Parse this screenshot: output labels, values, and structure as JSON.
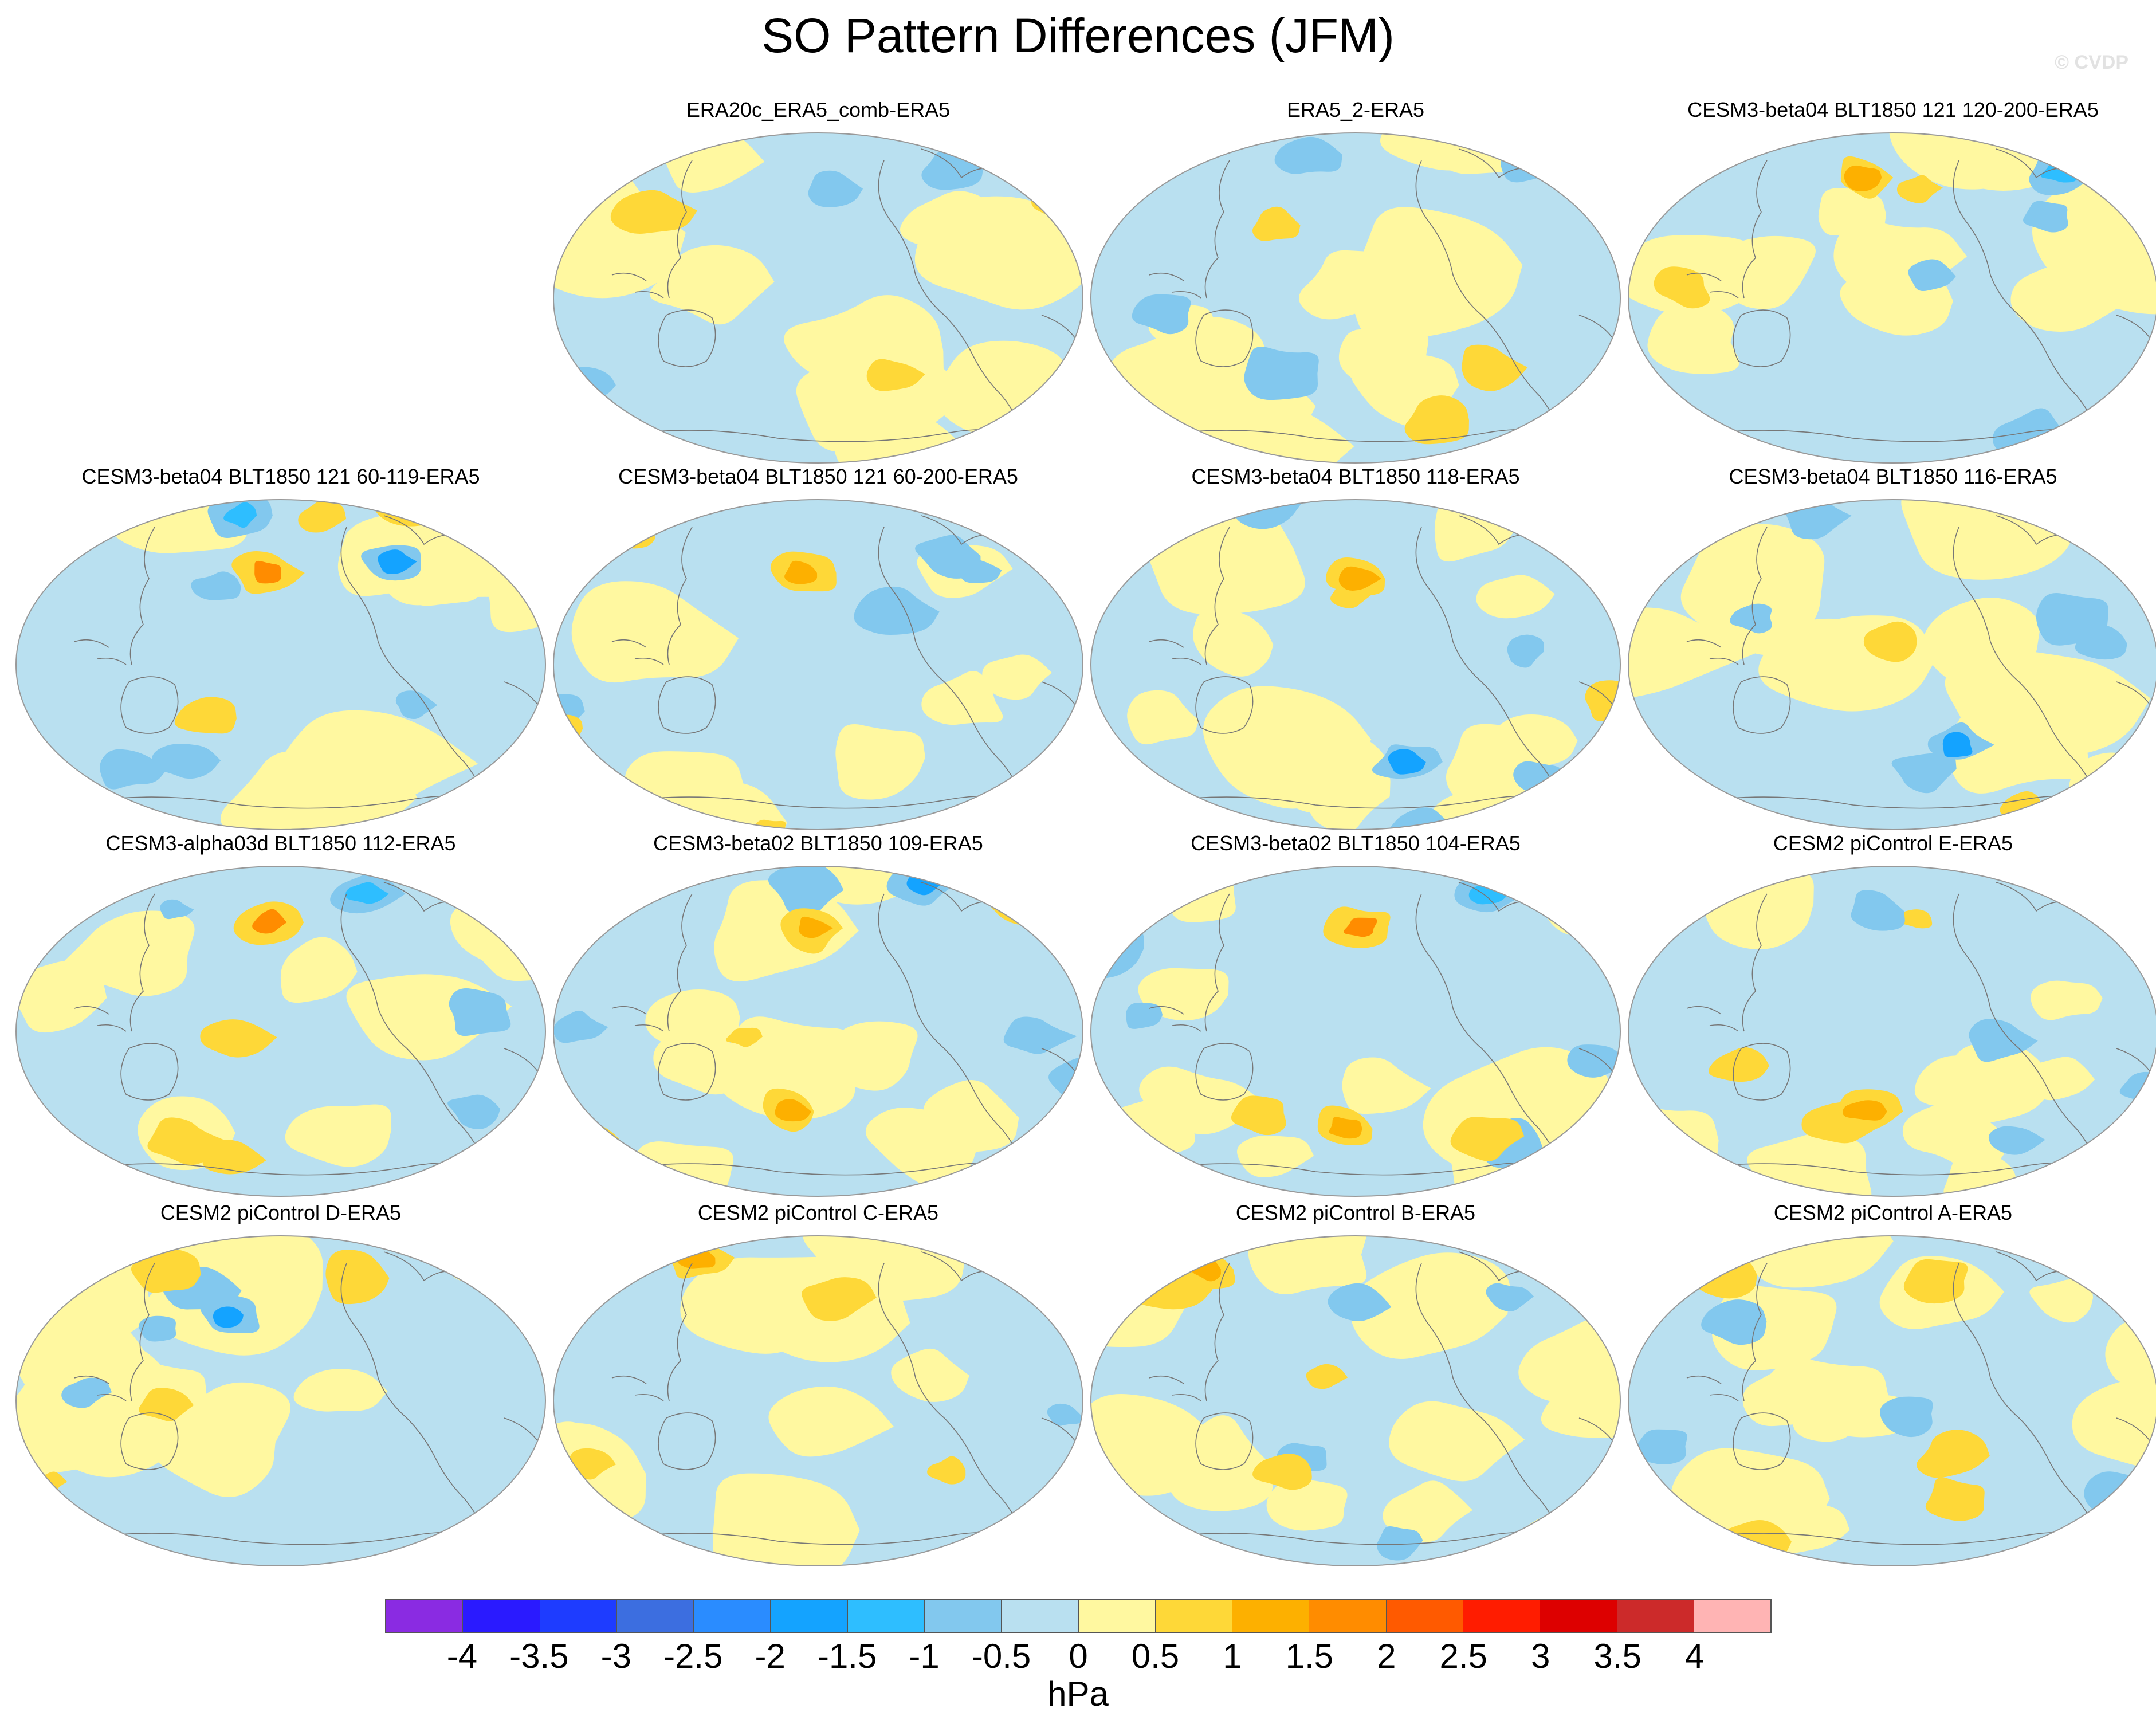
{
  "title": "SO Pattern Differences (JFM)",
  "copyright": "© CVDP",
  "colorbar": {
    "colors": [
      "#8a2be2",
      "#2a1aff",
      "#1e3cff",
      "#3c6ee0",
      "#2a8cff",
      "#14a3ff",
      "#2ebeff",
      "#82c8ee",
      "#b9e0f0",
      "#fff8a0",
      "#fed838",
      "#fdb000",
      "#ff8c00",
      "#ff5a00",
      "#ff1c00",
      "#dd0000",
      "#cc2a2a",
      "#ffb4b4"
    ],
    "ticks": [
      "-4",
      "-3.5",
      "-3",
      "-2.5",
      "-2",
      "-1.5",
      "-1",
      "-0.5",
      "0",
      "0.5",
      "1",
      "1.5",
      "2",
      "2.5",
      "3",
      "3.5",
      "4"
    ],
    "units": "hPa"
  },
  "panels": [
    {
      "title": "ERA20c_ERA5_comb-ERA5",
      "row": 0,
      "col": 1,
      "variant": 0
    },
    {
      "title": "ERA5_2-ERA5",
      "row": 0,
      "col": 2,
      "variant": 1
    },
    {
      "title": "CESM3-beta04 BLT1850 121 120-200-ERA5",
      "row": 0,
      "col": 3,
      "variant": 2
    },
    {
      "title": "CESM3-beta04 BLT1850 121 60-119-ERA5",
      "row": 1,
      "col": 0,
      "variant": 3
    },
    {
      "title": "CESM3-beta04 BLT1850 121 60-200-ERA5",
      "row": 1,
      "col": 1,
      "variant": 4
    },
    {
      "title": "CESM3-beta04 BLT1850 118-ERA5",
      "row": 1,
      "col": 2,
      "variant": 5
    },
    {
      "title": "CESM3-beta04 BLT1850 116-ERA5",
      "row": 1,
      "col": 3,
      "variant": 6
    },
    {
      "title": "CESM3-alpha03d BLT1850 112-ERA5",
      "row": 2,
      "col": 0,
      "variant": 7
    },
    {
      "title": "CESM3-beta02 BLT1850 109-ERA5",
      "row": 2,
      "col": 1,
      "variant": 8
    },
    {
      "title": "CESM3-beta02 BLT1850 104-ERA5",
      "row": 2,
      "col": 2,
      "variant": 9
    },
    {
      "title": "CESM2 piControl E-ERA5",
      "row": 2,
      "col": 3,
      "variant": 10
    },
    {
      "title": "CESM2 piControl D-ERA5",
      "row": 3,
      "col": 0,
      "variant": 11
    },
    {
      "title": "CESM2 piControl C-ERA5",
      "row": 3,
      "col": 1,
      "variant": 12
    },
    {
      "title": "CESM2 piControl B-ERA5",
      "row": 3,
      "col": 2,
      "variant": 13
    },
    {
      "title": "CESM2 piControl A-ERA5",
      "row": 3,
      "col": 3,
      "variant": 14
    }
  ]
}
